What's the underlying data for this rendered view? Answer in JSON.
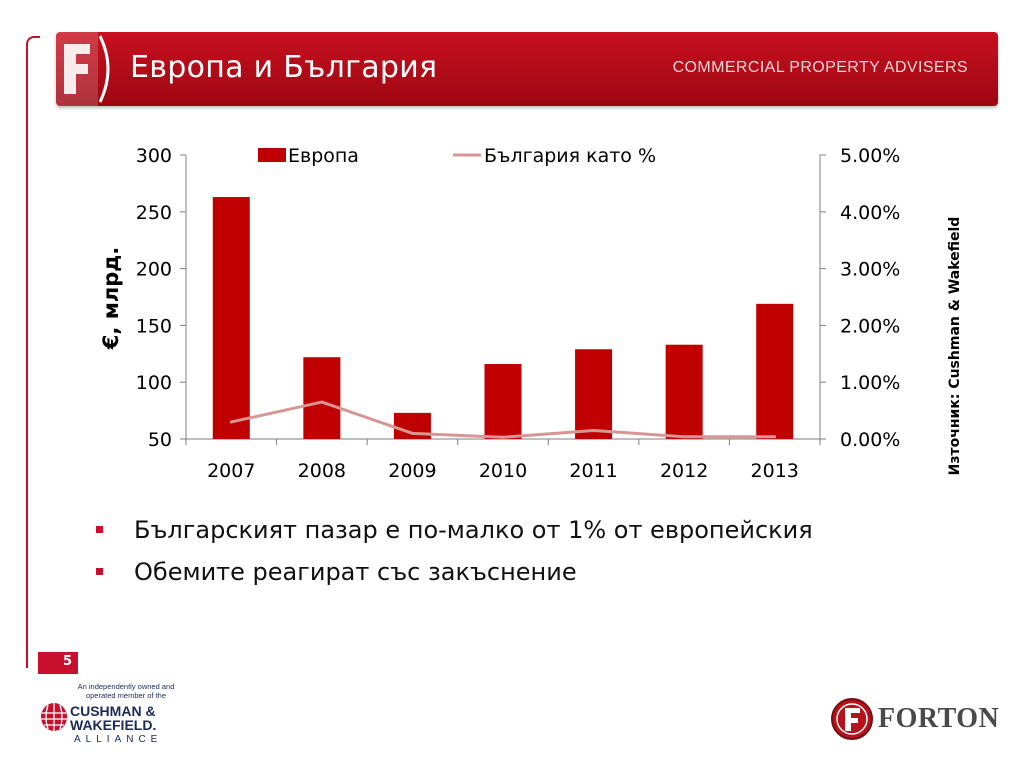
{
  "header": {
    "title": "Европа и България",
    "tagline": "COMMERCIAL PROPERTY ADVISERS",
    "logo_icon": "forton-f-logo-icon",
    "color": "#c8102e"
  },
  "chart_data": {
    "type": "bar",
    "categories": [
      "2007",
      "2008",
      "2009",
      "2010",
      "2011",
      "2012",
      "2013"
    ],
    "series": [
      {
        "name": "Европа",
        "type": "bar",
        "axis": "left",
        "color": "#c00000",
        "values": [
          263,
          122,
          73,
          116,
          129,
          133,
          169
        ]
      },
      {
        "name": "България като %",
        "type": "line",
        "axis": "right",
        "color": "#d99594",
        "values": [
          0.3,
          0.65,
          0.1,
          0.03,
          0.15,
          0.04,
          0.04
        ]
      }
    ],
    "ylabel": "€, млрд.",
    "ylim": [
      50,
      300
    ],
    "yticks": [
      "300",
      "250",
      "200",
      "150",
      "100",
      "50"
    ],
    "y2lim": [
      0,
      5
    ],
    "y2ticks": [
      "5.00%",
      "4.00%",
      "3.00%",
      "2.00%",
      "1.00%",
      "0.00%"
    ],
    "legend_position": "top",
    "grid": false,
    "source_note": "Източник: Cushman & Wakefield"
  },
  "bullets": [
    "Българският пазар е по-малко от 1% от европейския",
    "Обемите реагират със закъснение"
  ],
  "page_number": "5",
  "footer": {
    "partner_note": "An independently owned and operated member of the",
    "partner_name_1": "CUSHMAN &",
    "partner_name_2": "WAKEFIELD.",
    "partner_alliance": "ALLIANCE",
    "brand_name": "FORTON"
  }
}
